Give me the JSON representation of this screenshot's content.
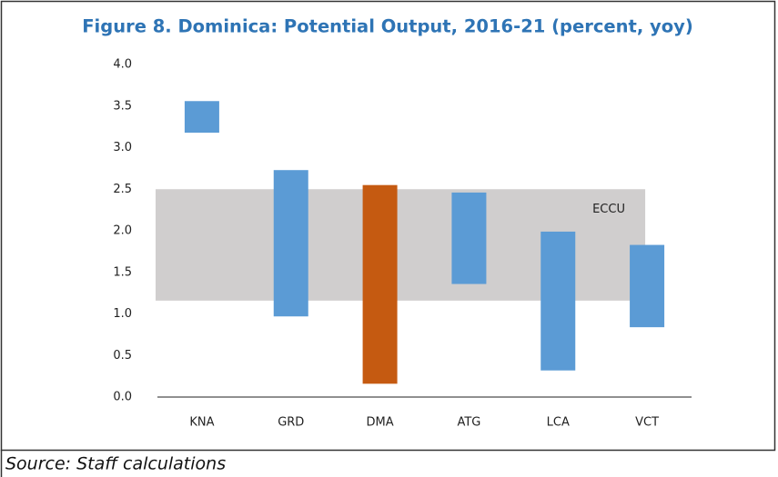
{
  "chart_data": {
    "type": "floating_bar",
    "title": "Figure 8. Dominica: Potential Output, 2016-21 (percent, yoy)",
    "source": "Source: Staff calculations",
    "categories": [
      "KNA",
      "GRD",
      "DMA",
      "ATG",
      "LCA",
      "VCT"
    ],
    "low": [
      3.18,
      0.97,
      0.16,
      1.36,
      0.32,
      0.84
    ],
    "high": [
      3.56,
      2.73,
      2.55,
      2.46,
      1.99,
      1.83
    ],
    "colors": [
      "#5b9bd5",
      "#5b9bd5",
      "#c55a11",
      "#5b9bd5",
      "#5b9bd5",
      "#5b9bd5"
    ],
    "band": {
      "label": "ECCU",
      "low": 1.16,
      "high": 2.5,
      "color": "#d0cece"
    },
    "ylim": [
      0,
      4
    ],
    "yticks": [
      {
        "value": 0,
        "label": "0.0"
      },
      {
        "value": 0.5,
        "label": "0.5"
      },
      {
        "value": 1,
        "label": "1.0"
      },
      {
        "value": 1.5,
        "label": "1.5"
      },
      {
        "value": 2,
        "label": "2.0"
      },
      {
        "value": 2.5,
        "label": "2.5"
      },
      {
        "value": 3,
        "label": "3.0"
      },
      {
        "value": 3.5,
        "label": "3.5"
      },
      {
        "value": 4,
        "label": "4.0"
      }
    ]
  }
}
